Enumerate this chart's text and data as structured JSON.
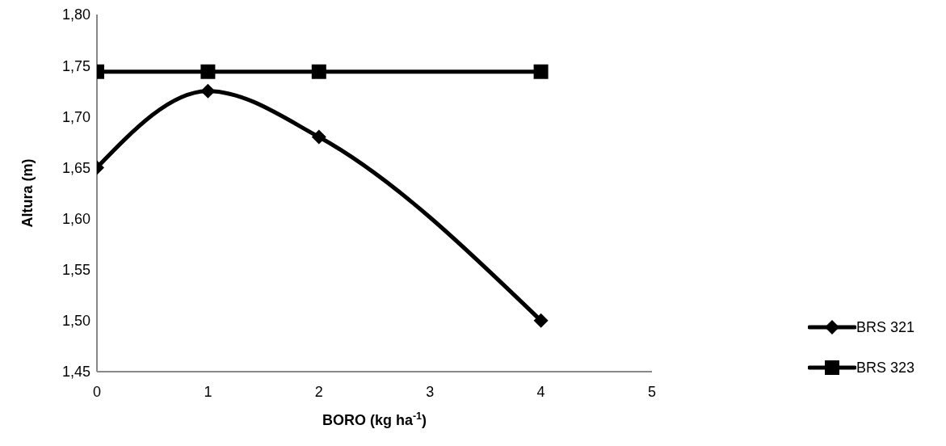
{
  "chart_data": {
    "type": "line",
    "xlabel": "BORO (kg ha$^{-1}$)",
    "ylabel": "Altura (m)",
    "x": [
      0,
      1,
      2,
      4
    ],
    "series": [
      {
        "name": "BRS 321",
        "color": "#000000",
        "values": [
          1.65,
          1.725,
          1.68,
          1.5
        ],
        "marker": "diamond"
      },
      {
        "name": "BRS 323",
        "color": "#000000",
        "values": [
          1.744,
          1.744,
          1.744,
          1.744
        ],
        "marker": "square"
      }
    ],
    "xlim": [
      0,
      5
    ],
    "xticks": [
      0,
      1,
      2,
      3,
      4,
      5
    ],
    "ylim": [
      1.45,
      1.8
    ],
    "yticks": [
      {
        "value": 1.45,
        "label": "1,45"
      },
      {
        "value": 1.5,
        "label": "1,50"
      },
      {
        "value": 1.55,
        "label": "1,55"
      },
      {
        "value": 1.6,
        "label": "1,60"
      },
      {
        "value": 1.65,
        "label": "1,65"
      },
      {
        "value": 1.7,
        "label": "1,70"
      },
      {
        "value": 1.75,
        "label": "1,75"
      },
      {
        "value": 1.8,
        "label": "1,80"
      }
    ],
    "grid": false,
    "legend": "right",
    "line_style": "solid"
  }
}
